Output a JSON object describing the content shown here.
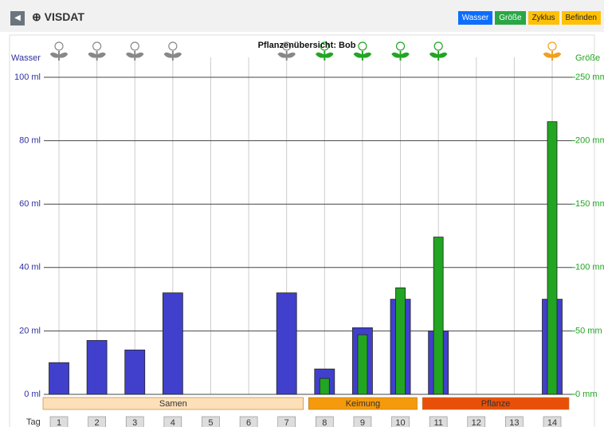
{
  "header": {
    "app_name": "VISDAT",
    "buttons": [
      {
        "label": "Wasser",
        "color": "#0d6efd"
      },
      {
        "label": "Größe",
        "color": "#28a745"
      },
      {
        "label": "Zyklus",
        "color": "#ffc107"
      },
      {
        "label": "Befinden",
        "color": "#ffc107"
      }
    ]
  },
  "chart_data": {
    "type": "bar",
    "title": "Pflanzenübersicht: Bob",
    "x_label": "Tag",
    "y_label": "Wasser",
    "y2_label": "Größe",
    "categories": [
      "1",
      "2",
      "3",
      "4",
      "5",
      "6",
      "7",
      "8",
      "9",
      "10",
      "11",
      "12",
      "13",
      "14"
    ],
    "series": [
      {
        "name": "Wasser",
        "color": "#4040cc",
        "values": [
          10,
          17,
          14,
          32,
          null,
          null,
          32,
          8,
          21,
          30,
          20,
          null,
          null,
          30
        ]
      },
      {
        "name": "Größe",
        "color": "#22a522",
        "axis": "y2",
        "values": [
          null,
          null,
          null,
          null,
          null,
          null,
          null,
          12.5,
          47,
          84,
          124,
          null,
          null,
          215
        ]
      }
    ],
    "ylim": [
      0,
      100
    ],
    "yticks": [
      {
        "value": 0,
        "label": "0 ml"
      },
      {
        "value": 20,
        "label": "20 ml"
      },
      {
        "value": 40,
        "label": "40 ml"
      },
      {
        "value": 60,
        "label": "60 ml"
      },
      {
        "value": 80,
        "label": "80 ml"
      },
      {
        "value": 100,
        "label": "100 ml"
      }
    ],
    "y2lim": [
      0,
      250
    ],
    "y2ticks": [
      {
        "value": 0,
        "label": "0 mm"
      },
      {
        "value": 50,
        "label": "50 mm"
      },
      {
        "value": 100,
        "label": "100 mm"
      },
      {
        "value": 150,
        "label": "150 mm"
      },
      {
        "value": 200,
        "label": "200 mm"
      },
      {
        "value": 250,
        "label": "250 mm"
      }
    ],
    "grid": true,
    "phases": [
      {
        "name": "Samen",
        "from": "1",
        "to": "7",
        "color": "#fde0b8"
      },
      {
        "name": "Keimung",
        "from": "8",
        "to": "10",
        "color": "#f59a0c"
      },
      {
        "name": "Pflanze",
        "from": "11",
        "to": "14",
        "color": "#e8500a"
      }
    ],
    "icon_colors": [
      "#888888",
      "#888888",
      "#888888",
      "#888888",
      null,
      null,
      "#888888",
      "#22a522",
      "#22a522",
      "#22a522",
      "#22a522",
      null,
      null,
      "#f0a020"
    ]
  }
}
